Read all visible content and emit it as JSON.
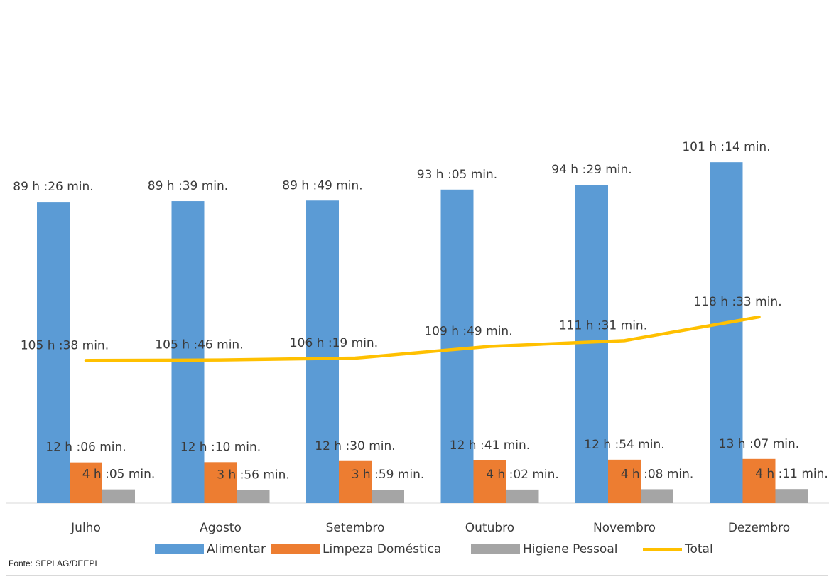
{
  "chart_data": {
    "type": "bar",
    "categories": [
      "Julho",
      "Agosto",
      "Setembro",
      "Outubro",
      "Novembro",
      "Dezembro"
    ],
    "series": [
      {
        "name": "Alimentar",
        "type": "bar",
        "color": "#5b9bd5",
        "values": [
          89.43,
          89.65,
          89.82,
          93.08,
          94.48,
          101.23
        ],
        "labels": [
          "89 h :26 min.",
          "89 h :39 min.",
          "89 h :49 min.",
          "93 h :05 min.",
          "94 h :29 min.",
          "101 h :14 min."
        ]
      },
      {
        "name": "Limpeza Doméstica",
        "type": "bar",
        "color": "#ed7d31",
        "values": [
          12.1,
          12.17,
          12.5,
          12.68,
          12.9,
          13.12
        ],
        "labels": [
          "12 h :06 min.",
          "12 h :10 min.",
          "12 h :30 min.",
          "12 h :41 min.",
          "12 h :54 min.",
          "13 h :07 min."
        ]
      },
      {
        "name": "Higiene Pessoal",
        "type": "bar",
        "color": "#a5a5a5",
        "values": [
          4.08,
          3.93,
          3.98,
          4.03,
          4.13,
          4.18
        ],
        "labels": [
          "4 h :05 min.",
          "3 h :56 min.",
          "3 h :59 min.",
          "4 h :02 min.",
          "4 h :08 min.",
          "4 h :11 min."
        ]
      },
      {
        "name": "Total",
        "type": "line",
        "color": "#ffc000",
        "values": [
          105.63,
          105.77,
          106.32,
          109.82,
          111.52,
          118.55
        ],
        "labels": [
          "105 h :38 min.",
          "105 h :46 min.",
          "106 h :19 min.",
          "109 h :49 min.",
          "111 h :31 min.",
          "118 h :33 min."
        ]
      }
    ],
    "title": "",
    "xlabel": "",
    "ylabel": "",
    "ylim": [
      0,
      150
    ],
    "grid": false,
    "legend": "bottom"
  },
  "source": "Fonte: SEPLAG/DEEPI"
}
